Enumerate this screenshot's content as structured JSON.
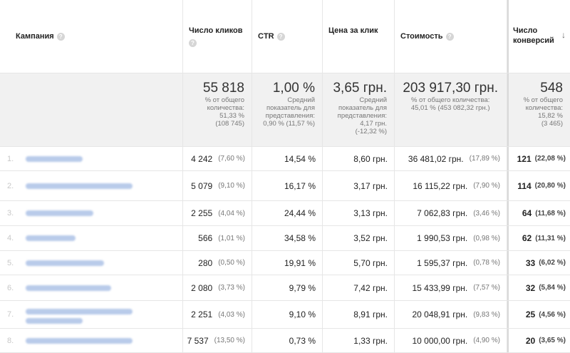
{
  "header": {
    "campaign": "Кампания",
    "clicks": "Число кликов",
    "ctr": "CTR",
    "cpc": "Цена за клик",
    "cost": "Стоимость",
    "conversions_line1": "Число",
    "conversions_line2": "конверсий",
    "help": "?",
    "sort_arrow": "↓"
  },
  "totals": {
    "clicks": {
      "value": "55 818",
      "l1": "% от общего",
      "l2": "количества:",
      "l3": "51,33 %",
      "l4": "(108 745)"
    },
    "ctr": {
      "value": "1,00 %",
      "l1": "Средний",
      "l2": "показатель для",
      "l3": "представления:",
      "l4": "0,90 % (11,57 %)"
    },
    "cpc": {
      "value": "3,65 грн.",
      "l1": "Средний",
      "l2": "показатель для",
      "l3": "представления:",
      "l4": "4,17 грн.",
      "l5": "(-12,32 %)"
    },
    "cost": {
      "value": "203 917,30 грн.",
      "l1": "% от общего количества:",
      "l2": "45,01 % (453 082,32 грн.)"
    },
    "conversions": {
      "value": "548",
      "l1": "% от общего",
      "l2": "количества:",
      "l3": "15,82 %",
      "l4": "(3 465)"
    }
  },
  "rows": [
    {
      "idx": "1.",
      "clicks": "4 242",
      "clicks_pct": "(7,60 %)",
      "ctr": "14,54 %",
      "cpc": "8,60 грн.",
      "cost": "36 481,02 грн.",
      "cost_pct": "(17,89 %)",
      "conv": "121",
      "conv_pct": "(22,08 %)"
    },
    {
      "idx": "2.",
      "clicks": "5 079",
      "clicks_pct": "(9,10 %)",
      "ctr": "16,17 %",
      "cpc": "3,17 грн.",
      "cost": "16 115,22 грн.",
      "cost_pct": "(7,90 %)",
      "conv": "114",
      "conv_pct": "(20,80 %)"
    },
    {
      "idx": "3.",
      "clicks": "2 255",
      "clicks_pct": "(4,04 %)",
      "ctr": "24,44 %",
      "cpc": "3,13 грн.",
      "cost": "7 062,83 грн.",
      "cost_pct": "(3,46 %)",
      "conv": "64",
      "conv_pct": "(11,68 %)"
    },
    {
      "idx": "4.",
      "clicks": "566",
      "clicks_pct": "(1,01 %)",
      "ctr": "34,58 %",
      "cpc": "3,52 грн.",
      "cost": "1 990,53 грн.",
      "cost_pct": "(0,98 %)",
      "conv": "62",
      "conv_pct": "(11,31 %)"
    },
    {
      "idx": "5.",
      "clicks": "280",
      "clicks_pct": "(0,50 %)",
      "ctr": "19,91 %",
      "cpc": "5,70 грн.",
      "cost": "1 595,37 грн.",
      "cost_pct": "(0,78 %)",
      "conv": "33",
      "conv_pct": "(6,02 %)"
    },
    {
      "idx": "6.",
      "clicks": "2 080",
      "clicks_pct": "(3,73 %)",
      "ctr": "9,79 %",
      "cpc": "7,42 грн.",
      "cost": "15 433,99 грн.",
      "cost_pct": "(7,57 %)",
      "conv": "32",
      "conv_pct": "(5,84 %)"
    },
    {
      "idx": "7.",
      "clicks": "2 251",
      "clicks_pct": "(4,03 %)",
      "ctr": "9,10 %",
      "cpc": "8,91 грн.",
      "cost": "20 048,91 грн.",
      "cost_pct": "(9,83 %)",
      "conv": "25",
      "conv_pct": "(4,56 %)"
    },
    {
      "idx": "8.",
      "clicks": "7 537",
      "clicks_pct": "(13,50 %)",
      "ctr": "0,73 %",
      "cpc": "1,33 грн.",
      "cost": "10 000,00 грн.",
      "cost_pct": "(4,90 %)",
      "conv": "20",
      "conv_pct": "(3,65 %)"
    }
  ]
}
